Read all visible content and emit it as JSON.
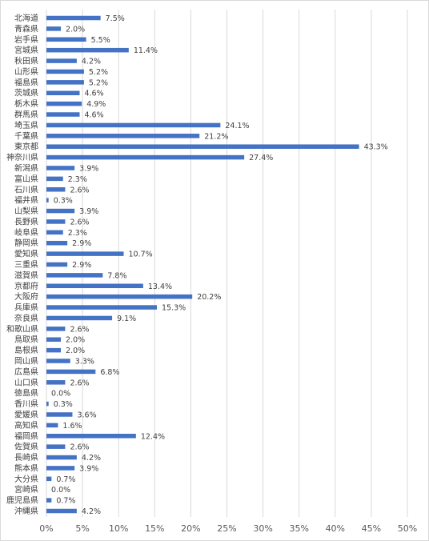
{
  "chart_data": {
    "type": "bar",
    "orientation": "horizontal",
    "title": "",
    "xlabel": "",
    "ylabel": "",
    "xlim": [
      0,
      50
    ],
    "x_ticks": [
      "0%",
      "5%",
      "10%",
      "15%",
      "20%",
      "25%",
      "30%",
      "35%",
      "40%",
      "45%",
      "50%"
    ],
    "grid": "vertical",
    "legend": "none",
    "bar_color": "#4472c4",
    "categories": [
      "北海道",
      "青森県",
      "岩手県",
      "宮城県",
      "秋田県",
      "山形県",
      "福島県",
      "茨城県",
      "栃木県",
      "群馬県",
      "埼玉県",
      "千葉県",
      "東京都",
      "神奈川県",
      "新潟県",
      "富山県",
      "石川県",
      "福井県",
      "山梨県",
      "長野県",
      "岐阜県",
      "静岡県",
      "愛知県",
      "三重県",
      "滋賀県",
      "京都府",
      "大阪府",
      "兵庫県",
      "奈良県",
      "和歌山県",
      "鳥取県",
      "島根県",
      "岡山県",
      "広島県",
      "山口県",
      "徳島県",
      "香川県",
      "愛媛県",
      "高知県",
      "福岡県",
      "佐賀県",
      "長崎県",
      "熊本県",
      "大分県",
      "宮崎県",
      "鹿児島県",
      "沖縄県"
    ],
    "values": [
      7.5,
      2.0,
      5.5,
      11.4,
      4.2,
      5.2,
      5.2,
      4.6,
      4.9,
      4.6,
      24.1,
      21.2,
      43.3,
      27.4,
      3.9,
      2.3,
      2.6,
      0.3,
      3.9,
      2.6,
      2.3,
      2.9,
      10.7,
      2.9,
      7.8,
      13.4,
      20.2,
      15.3,
      9.1,
      2.6,
      2.0,
      2.0,
      3.3,
      6.8,
      2.6,
      0.0,
      0.3,
      3.6,
      1.6,
      12.4,
      2.6,
      4.2,
      3.9,
      0.7,
      0.0,
      0.7,
      4.2
    ],
    "data_labels": [
      "7.5%",
      "2.0%",
      "5.5%",
      "11.4%",
      "4.2%",
      "5.2%",
      "5.2%",
      "4.6%",
      "4.9%",
      "4.6%",
      "24.1%",
      "21.2%",
      "43.3%",
      "27.4%",
      "3.9%",
      "2.3%",
      "2.6%",
      "0.3%",
      "3.9%",
      "2.6%",
      "2.3%",
      "2.9%",
      "10.7%",
      "2.9%",
      "7.8%",
      "13.4%",
      "20.2%",
      "15.3%",
      "9.1%",
      "2.6%",
      "2.0%",
      "2.0%",
      "3.3%",
      "6.8%",
      "2.6%",
      "0.0%",
      "0.3%",
      "3.6%",
      "1.6%",
      "12.4%",
      "2.6%",
      "4.2%",
      "3.9%",
      "0.7%",
      "0.0%",
      "0.7%",
      "4.2%"
    ]
  }
}
